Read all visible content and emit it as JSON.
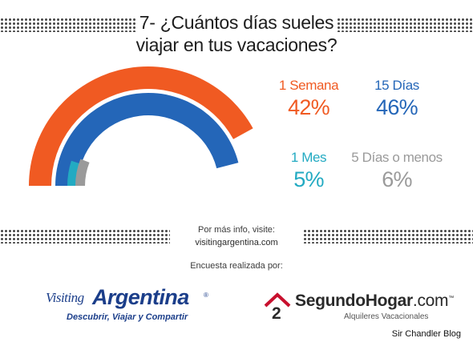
{
  "title": {
    "line1": "7- ¿Cuántos días sueles",
    "line2": "viajar en tus vacaciones?"
  },
  "chart_data": {
    "type": "radial-bar",
    "title": "7- ¿Cuántos días sueles viajar en tus vacaciones?",
    "max": 50,
    "series": [
      {
        "name": "1 Semana",
        "value": 42,
        "label": "42%",
        "color": "#f05a22"
      },
      {
        "name": "15 Días",
        "value": 46,
        "label": "46%",
        "color": "#2466b8"
      },
      {
        "name": "1 Mes",
        "value": 5,
        "label": "5%",
        "color": "#22aac2"
      },
      {
        "name": "5 Días o menos",
        "value": 6,
        "label": "6%",
        "color": "#9a9a9a"
      }
    ]
  },
  "info": {
    "visit_text": "Por más info, visite:",
    "url": "visitingargentina.com",
    "survey_text": "Encuesta realizada por:"
  },
  "logos": {
    "visiting_argentina": {
      "word1": "Visiting",
      "word2": "Argentina",
      "registered": "®",
      "tagline": "Descubrir, Viajar y Compartir"
    },
    "segundo_hogar": {
      "icon_digit": "2",
      "name_bold": "SegundoHogar",
      "name_rest": ".com",
      "trademark": "™",
      "subtitle": "Alquileres Vacacionales"
    }
  },
  "credit": "Sir Chandler Blog"
}
